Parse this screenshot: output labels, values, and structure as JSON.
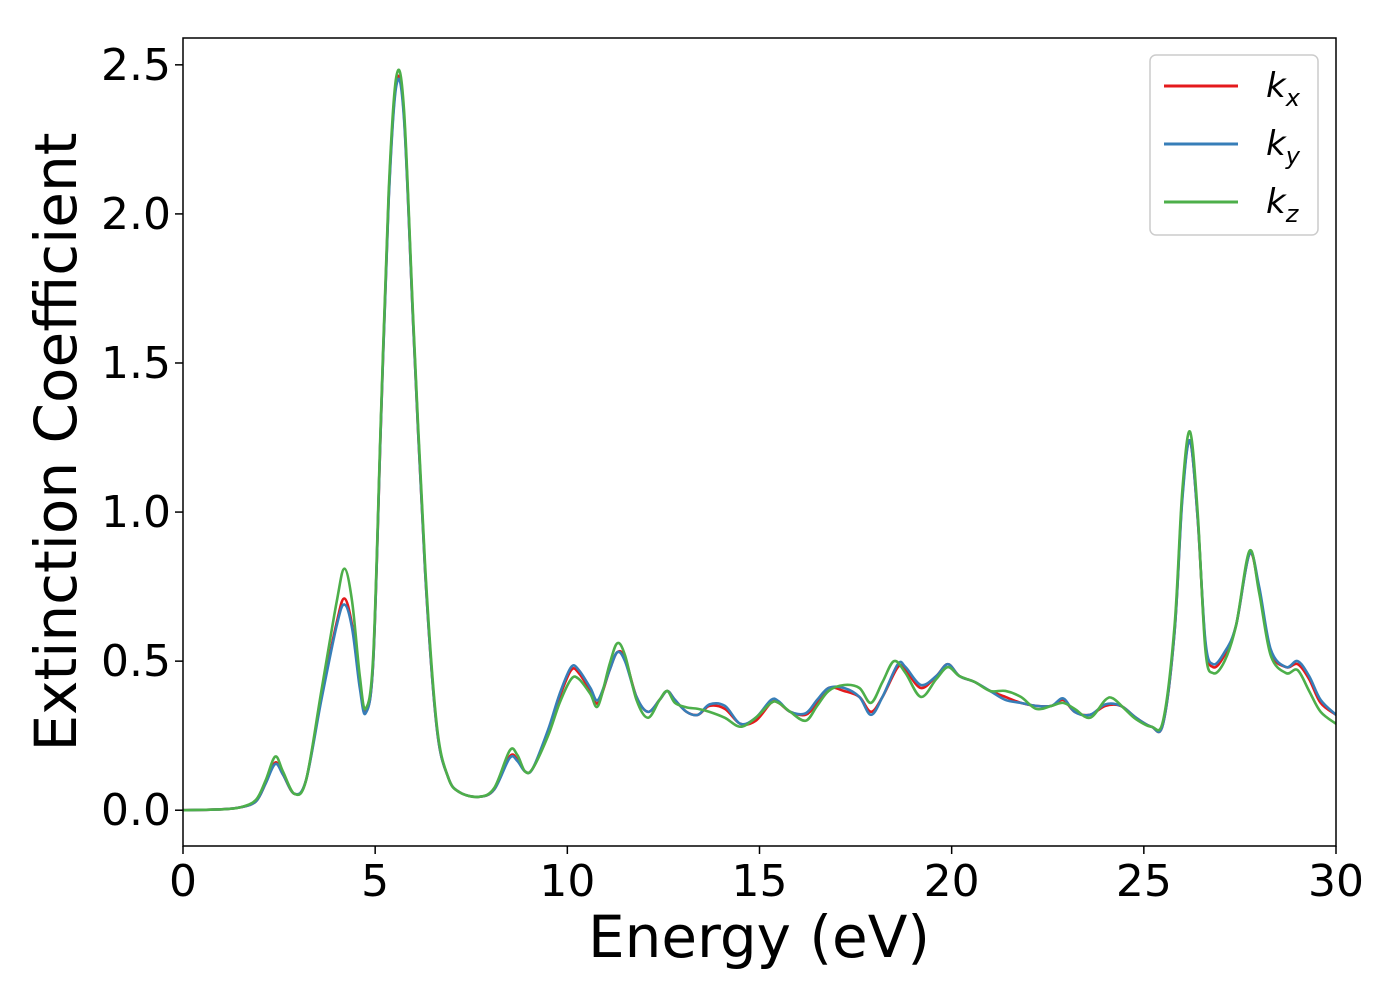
{
  "chart_data": {
    "type": "line",
    "xlabel": "Energy (eV)",
    "ylabel": "Extinction Coefficient",
    "xlim": [
      0,
      30
    ],
    "ylim": [
      -0.12,
      2.59
    ],
    "xticks": [
      0,
      5,
      10,
      15,
      20,
      25,
      30
    ],
    "xtick_labels": [
      "0",
      "5",
      "10",
      "15",
      "20",
      "25",
      "30"
    ],
    "yticks": [
      0.0,
      0.5,
      1.0,
      1.5,
      2.0,
      2.5
    ],
    "ytick_labels": [
      "0.0",
      "0.5",
      "1.0",
      "1.5",
      "2.0",
      "2.5"
    ],
    "grid": false,
    "legend_position": "top-right",
    "series": [
      {
        "name": "k",
        "subscript": "x",
        "color": "#e41a1c",
        "points": [
          [
            0,
            0
          ],
          [
            1,
            0.003
          ],
          [
            1.5,
            0.01
          ],
          [
            1.9,
            0.03
          ],
          [
            2.15,
            0.09
          ],
          [
            2.4,
            0.16
          ],
          [
            2.6,
            0.12
          ],
          [
            2.9,
            0.055
          ],
          [
            3.2,
            0.1
          ],
          [
            3.6,
            0.38
          ],
          [
            4.0,
            0.63
          ],
          [
            4.2,
            0.71
          ],
          [
            4.4,
            0.62
          ],
          [
            4.6,
            0.42
          ],
          [
            4.75,
            0.33
          ],
          [
            4.95,
            0.5
          ],
          [
            5.15,
            1.3
          ],
          [
            5.35,
            2.05
          ],
          [
            5.55,
            2.44
          ],
          [
            5.75,
            2.33
          ],
          [
            6.0,
            1.6
          ],
          [
            6.3,
            0.8
          ],
          [
            6.6,
            0.28
          ],
          [
            6.9,
            0.11
          ],
          [
            7.2,
            0.06
          ],
          [
            7.7,
            0.045
          ],
          [
            8.1,
            0.07
          ],
          [
            8.5,
            0.18
          ],
          [
            8.7,
            0.17
          ],
          [
            8.9,
            0.13
          ],
          [
            9.1,
            0.14
          ],
          [
            9.5,
            0.26
          ],
          [
            9.8,
            0.38
          ],
          [
            10.1,
            0.47
          ],
          [
            10.3,
            0.46
          ],
          [
            10.6,
            0.4
          ],
          [
            10.8,
            0.36
          ],
          [
            11.1,
            0.47
          ],
          [
            11.3,
            0.53
          ],
          [
            11.5,
            0.51
          ],
          [
            11.8,
            0.38
          ],
          [
            12.1,
            0.33
          ],
          [
            12.4,
            0.37
          ],
          [
            12.6,
            0.4
          ],
          [
            12.8,
            0.37
          ],
          [
            13.1,
            0.33
          ],
          [
            13.4,
            0.32
          ],
          [
            13.7,
            0.35
          ],
          [
            14.1,
            0.34
          ],
          [
            14.5,
            0.29
          ],
          [
            14.9,
            0.3
          ],
          [
            15.3,
            0.36
          ],
          [
            15.5,
            0.36
          ],
          [
            15.8,
            0.33
          ],
          [
            16.2,
            0.32
          ],
          [
            16.5,
            0.36
          ],
          [
            16.8,
            0.41
          ],
          [
            17.2,
            0.4
          ],
          [
            17.6,
            0.38
          ],
          [
            17.9,
            0.33
          ],
          [
            18.2,
            0.38
          ],
          [
            18.6,
            0.48
          ],
          [
            18.8,
            0.47
          ],
          [
            19.2,
            0.41
          ],
          [
            19.6,
            0.45
          ],
          [
            19.9,
            0.49
          ],
          [
            20.2,
            0.45
          ],
          [
            20.6,
            0.43
          ],
          [
            21.0,
            0.4
          ],
          [
            21.4,
            0.38
          ],
          [
            21.8,
            0.36
          ],
          [
            22.2,
            0.35
          ],
          [
            22.6,
            0.35
          ],
          [
            22.9,
            0.37
          ],
          [
            23.2,
            0.33
          ],
          [
            23.6,
            0.32
          ],
          [
            24.0,
            0.35
          ],
          [
            24.4,
            0.35
          ],
          [
            24.8,
            0.31
          ],
          [
            25.2,
            0.28
          ],
          [
            25.5,
            0.29
          ],
          [
            25.8,
            0.6
          ],
          [
            26.0,
            1.05
          ],
          [
            26.2,
            1.24
          ],
          [
            26.4,
            0.98
          ],
          [
            26.6,
            0.56
          ],
          [
            26.8,
            0.48
          ],
          [
            27.1,
            0.52
          ],
          [
            27.4,
            0.62
          ],
          [
            27.75,
            0.86
          ],
          [
            28.0,
            0.74
          ],
          [
            28.3,
            0.53
          ],
          [
            28.7,
            0.48
          ],
          [
            29.0,
            0.49
          ],
          [
            29.3,
            0.44
          ],
          [
            29.6,
            0.36
          ],
          [
            30,
            0.32
          ]
        ]
      },
      {
        "name": "k",
        "subscript": "y",
        "color": "#377eb8",
        "points": [
          [
            0,
            0
          ],
          [
            1,
            0.003
          ],
          [
            1.5,
            0.01
          ],
          [
            1.9,
            0.03
          ],
          [
            2.15,
            0.09
          ],
          [
            2.4,
            0.155
          ],
          [
            2.6,
            0.12
          ],
          [
            2.9,
            0.055
          ],
          [
            3.2,
            0.1
          ],
          [
            3.6,
            0.37
          ],
          [
            4.0,
            0.62
          ],
          [
            4.2,
            0.69
          ],
          [
            4.4,
            0.61
          ],
          [
            4.6,
            0.41
          ],
          [
            4.75,
            0.325
          ],
          [
            4.95,
            0.5
          ],
          [
            5.15,
            1.3
          ],
          [
            5.35,
            2.04
          ],
          [
            5.55,
            2.43
          ],
          [
            5.75,
            2.32
          ],
          [
            6.0,
            1.6
          ],
          [
            6.3,
            0.8
          ],
          [
            6.6,
            0.28
          ],
          [
            6.9,
            0.11
          ],
          [
            7.2,
            0.06
          ],
          [
            7.7,
            0.045
          ],
          [
            8.1,
            0.07
          ],
          [
            8.5,
            0.175
          ],
          [
            8.7,
            0.165
          ],
          [
            8.9,
            0.13
          ],
          [
            9.1,
            0.14
          ],
          [
            9.5,
            0.27
          ],
          [
            9.8,
            0.39
          ],
          [
            10.1,
            0.48
          ],
          [
            10.3,
            0.47
          ],
          [
            10.6,
            0.41
          ],
          [
            10.8,
            0.37
          ],
          [
            11.1,
            0.47
          ],
          [
            11.3,
            0.53
          ],
          [
            11.5,
            0.5
          ],
          [
            11.8,
            0.38
          ],
          [
            12.1,
            0.33
          ],
          [
            12.4,
            0.37
          ],
          [
            12.6,
            0.4
          ],
          [
            12.8,
            0.37
          ],
          [
            13.1,
            0.33
          ],
          [
            13.4,
            0.32
          ],
          [
            13.7,
            0.355
          ],
          [
            14.1,
            0.35
          ],
          [
            14.5,
            0.29
          ],
          [
            14.9,
            0.31
          ],
          [
            15.3,
            0.37
          ],
          [
            15.5,
            0.365
          ],
          [
            15.8,
            0.33
          ],
          [
            16.2,
            0.325
          ],
          [
            16.5,
            0.37
          ],
          [
            16.8,
            0.41
          ],
          [
            17.2,
            0.41
          ],
          [
            17.6,
            0.38
          ],
          [
            17.9,
            0.32
          ],
          [
            18.2,
            0.38
          ],
          [
            18.6,
            0.49
          ],
          [
            18.8,
            0.48
          ],
          [
            19.2,
            0.42
          ],
          [
            19.6,
            0.45
          ],
          [
            19.9,
            0.49
          ],
          [
            20.2,
            0.45
          ],
          [
            20.6,
            0.43
          ],
          [
            21.0,
            0.4
          ],
          [
            21.4,
            0.37
          ],
          [
            21.8,
            0.36
          ],
          [
            22.2,
            0.35
          ],
          [
            22.6,
            0.35
          ],
          [
            22.9,
            0.375
          ],
          [
            23.2,
            0.33
          ],
          [
            23.6,
            0.32
          ],
          [
            24.0,
            0.355
          ],
          [
            24.4,
            0.35
          ],
          [
            24.8,
            0.31
          ],
          [
            25.2,
            0.28
          ],
          [
            25.5,
            0.29
          ],
          [
            25.8,
            0.6
          ],
          [
            26.0,
            1.04
          ],
          [
            26.2,
            1.24
          ],
          [
            26.4,
            0.98
          ],
          [
            26.6,
            0.57
          ],
          [
            26.8,
            0.49
          ],
          [
            27.1,
            0.53
          ],
          [
            27.4,
            0.62
          ],
          [
            27.75,
            0.86
          ],
          [
            28.0,
            0.75
          ],
          [
            28.3,
            0.54
          ],
          [
            28.7,
            0.48
          ],
          [
            29.0,
            0.5
          ],
          [
            29.3,
            0.45
          ],
          [
            29.6,
            0.37
          ],
          [
            30,
            0.32
          ]
        ]
      },
      {
        "name": "k",
        "subscript": "z",
        "color": "#4daf4a",
        "points": [
          [
            0,
            0
          ],
          [
            1,
            0.003
          ],
          [
            1.5,
            0.01
          ],
          [
            1.9,
            0.035
          ],
          [
            2.15,
            0.1
          ],
          [
            2.4,
            0.18
          ],
          [
            2.6,
            0.13
          ],
          [
            2.9,
            0.055
          ],
          [
            3.2,
            0.1
          ],
          [
            3.6,
            0.4
          ],
          [
            4.0,
            0.7
          ],
          [
            4.2,
            0.81
          ],
          [
            4.4,
            0.7
          ],
          [
            4.6,
            0.45
          ],
          [
            4.75,
            0.34
          ],
          [
            4.95,
            0.52
          ],
          [
            5.15,
            1.32
          ],
          [
            5.35,
            2.07
          ],
          [
            5.55,
            2.46
          ],
          [
            5.75,
            2.35
          ],
          [
            6.0,
            1.62
          ],
          [
            6.3,
            0.82
          ],
          [
            6.6,
            0.29
          ],
          [
            6.9,
            0.11
          ],
          [
            7.2,
            0.06
          ],
          [
            7.7,
            0.045
          ],
          [
            8.1,
            0.075
          ],
          [
            8.5,
            0.2
          ],
          [
            8.7,
            0.185
          ],
          [
            8.9,
            0.13
          ],
          [
            9.1,
            0.14
          ],
          [
            9.5,
            0.25
          ],
          [
            9.8,
            0.36
          ],
          [
            10.1,
            0.44
          ],
          [
            10.3,
            0.44
          ],
          [
            10.6,
            0.39
          ],
          [
            10.8,
            0.35
          ],
          [
            11.1,
            0.49
          ],
          [
            11.3,
            0.56
          ],
          [
            11.5,
            0.52
          ],
          [
            11.8,
            0.37
          ],
          [
            12.1,
            0.31
          ],
          [
            12.4,
            0.37
          ],
          [
            12.6,
            0.4
          ],
          [
            12.8,
            0.36
          ],
          [
            13.1,
            0.345
          ],
          [
            13.4,
            0.34
          ],
          [
            13.7,
            0.33
          ],
          [
            14.1,
            0.31
          ],
          [
            14.5,
            0.28
          ],
          [
            14.9,
            0.31
          ],
          [
            15.3,
            0.36
          ],
          [
            15.5,
            0.36
          ],
          [
            15.8,
            0.33
          ],
          [
            16.2,
            0.3
          ],
          [
            16.5,
            0.35
          ],
          [
            16.8,
            0.4
          ],
          [
            17.2,
            0.42
          ],
          [
            17.6,
            0.41
          ],
          [
            17.9,
            0.36
          ],
          [
            18.2,
            0.43
          ],
          [
            18.5,
            0.5
          ],
          [
            18.8,
            0.46
          ],
          [
            19.2,
            0.38
          ],
          [
            19.6,
            0.44
          ],
          [
            19.9,
            0.48
          ],
          [
            20.2,
            0.45
          ],
          [
            20.6,
            0.43
          ],
          [
            21.0,
            0.4
          ],
          [
            21.4,
            0.4
          ],
          [
            21.8,
            0.38
          ],
          [
            22.2,
            0.34
          ],
          [
            22.6,
            0.35
          ],
          [
            22.9,
            0.36
          ],
          [
            23.2,
            0.34
          ],
          [
            23.6,
            0.31
          ],
          [
            24.0,
            0.37
          ],
          [
            24.2,
            0.375
          ],
          [
            24.5,
            0.34
          ],
          [
            24.8,
            0.305
          ],
          [
            25.2,
            0.28
          ],
          [
            25.5,
            0.3
          ],
          [
            25.8,
            0.62
          ],
          [
            26.0,
            1.07
          ],
          [
            26.2,
            1.27
          ],
          [
            26.4,
            1.0
          ],
          [
            26.6,
            0.54
          ],
          [
            26.8,
            0.46
          ],
          [
            27.1,
            0.5
          ],
          [
            27.4,
            0.62
          ],
          [
            27.75,
            0.87
          ],
          [
            28.0,
            0.73
          ],
          [
            28.3,
            0.52
          ],
          [
            28.7,
            0.46
          ],
          [
            29.0,
            0.47
          ],
          [
            29.3,
            0.4
          ],
          [
            29.6,
            0.33
          ],
          [
            30,
            0.29
          ]
        ]
      }
    ]
  }
}
